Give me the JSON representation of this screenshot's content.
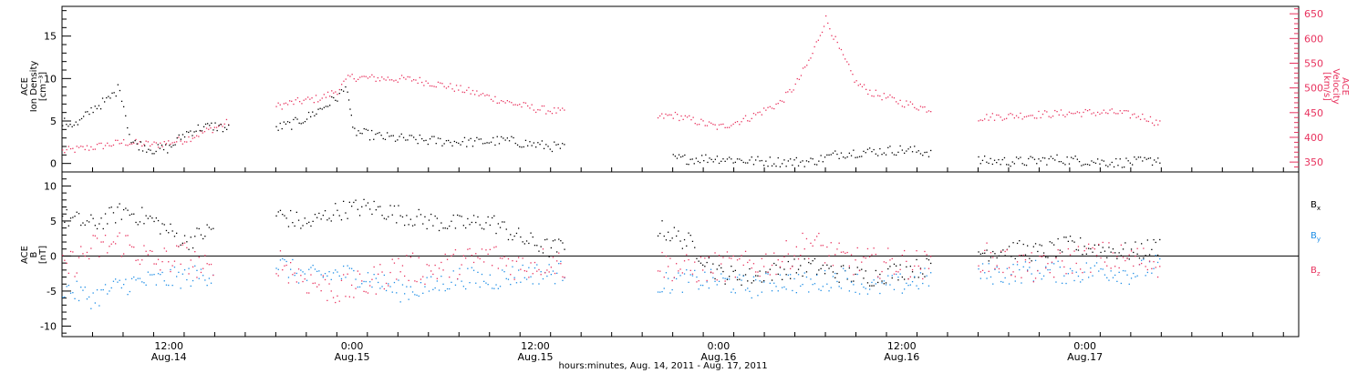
{
  "colors": {
    "black": "#000000",
    "pink": "#e8325e",
    "blue": "#1e8ee6"
  },
  "footer": {
    "xlabel": "hours:minutes, Aug. 14, 2011 - Aug. 17, 2011"
  },
  "chart_data": [
    {
      "type": "scatter",
      "panel": "top",
      "ylabel_left": [
        "ACE",
        "Ion Density",
        "[cm⁻³]"
      ],
      "ylabel_right": [
        "ACE",
        "Velocity",
        "[km/s]"
      ],
      "xlim": [
        "2011-08-14 05:00",
        "2011-08-17 14:00"
      ],
      "ylim_left": [
        -1,
        18.5
      ],
      "ylim_right": [
        330,
        665
      ],
      "yticks_left": [
        "0",
        "5",
        "10",
        "15"
      ],
      "yticks_right": [
        "350",
        "400",
        "450",
        "500",
        "550",
        "600",
        "650"
      ],
      "xticks": [
        {
          "t": "2011-08-14 12:00",
          "time": "12:00",
          "date": "Aug.14"
        },
        {
          "t": "2011-08-15 00:00",
          "time": "0:00",
          "date": "Aug.15"
        },
        {
          "t": "2011-08-15 12:00",
          "time": "12:00",
          "date": "Aug.15"
        },
        {
          "t": "2011-08-16 00:00",
          "time": "0:00",
          "date": "Aug.16"
        },
        {
          "t": "2011-08-16 12:00",
          "time": "12:00",
          "date": "Aug.16"
        },
        {
          "t": "2011-08-17 00:00",
          "time": "0:00",
          "date": "Aug.17"
        }
      ],
      "series": [
        {
          "axis": "left",
          "color": "black",
          "x": [
            "2011-08-14 05:00",
            "2011-08-14 06:00",
            "2011-08-14 07:00",
            "2011-08-14 08:00",
            "2011-08-14 08:45",
            "2011-08-14 09:30",
            "2011-08-14 10:00",
            "2011-08-14 11:00",
            "2011-08-14 12:00",
            "2011-08-14 13:00",
            "2011-08-14 14:00",
            "2011-08-14 15:00",
            "2011-08-14 16:00",
            "2011-08-14 19:00",
            "2011-08-14 20:00",
            "2011-08-14 21:00",
            "2011-08-14 22:00",
            "2011-08-14 23:00",
            "2011-08-14 23:40",
            "2011-08-15 00:00",
            "2011-08-15 01:00",
            "2011-08-15 02:00",
            "2011-08-15 04:00",
            "2011-08-15 06:00",
            "2011-08-15 08:00",
            "2011-08-15 10:00",
            "2011-08-15 12:00",
            "2011-08-15 14:00",
            "2011-08-15 16:00",
            "2011-08-15 21:00",
            "2011-08-15 22:00",
            "2011-08-15 23:00",
            "2011-08-16 00:00",
            "2011-08-16 02:00",
            "2011-08-16 04:00",
            "2011-08-16 06:00",
            "2011-08-16 08:00",
            "2011-08-16 10:00",
            "2011-08-16 12:00",
            "2011-08-16 14:00",
            "2011-08-16 17:00",
            "2011-08-16 20:00",
            "2011-08-16 22:00",
            "2011-08-17 00:00",
            "2011-08-17 02:00",
            "2011-08-17 04:00",
            "2011-08-17 05:00"
          ],
          "y": [
            4.8,
            4.6,
            6.5,
            7.5,
            9.0,
            2.5,
            2.2,
            1.6,
            1.8,
            3.5,
            4.2,
            4.4,
            4.0,
            4.2,
            4.6,
            5.4,
            6.5,
            7.8,
            9.0,
            3.8,
            3.4,
            3.1,
            2.8,
            2.6,
            2.5,
            2.7,
            2.2,
            1.8,
            1.9,
            0.6,
            0.5,
            0.6,
            0.6,
            0.3,
            0.2,
            0.2,
            1.2,
            1.4,
            1.6,
            1.3,
            0.3,
            0.2,
            0.5,
            0.3,
            0.1,
            0.2,
            0.6
          ]
        },
        {
          "axis": "right",
          "color": "pink",
          "x": [
            "2011-08-14 05:00",
            "2011-08-14 07:00",
            "2011-08-14 09:00",
            "2011-08-14 11:00",
            "2011-08-14 13:00",
            "2011-08-14 16:00",
            "2011-08-14 19:00",
            "2011-08-14 20:00",
            "2011-08-14 22:00",
            "2011-08-14 23:00",
            "2011-08-14 23:50",
            "2011-08-15 01:00",
            "2011-08-15 04:00",
            "2011-08-15 06:00",
            "2011-08-15 08:00",
            "2011-08-15 10:00",
            "2011-08-15 12:00",
            "2011-08-15 14:00",
            "2011-08-15 20:00",
            "2011-08-15 21:00",
            "2011-08-16 00:00",
            "2011-08-16 02:00",
            "2011-08-16 04:00",
            "2011-08-16 05:00",
            "2011-08-16 06:00",
            "2011-08-16 07:00",
            "2011-08-16 08:00",
            "2011-08-16 09:00",
            "2011-08-16 10:00",
            "2011-08-16 12:00",
            "2011-08-16 14:00",
            "2011-08-16 17:00",
            "2011-08-16 20:00",
            "2011-08-17 00:00",
            "2011-08-17 02:00",
            "2011-08-17 04:00",
            "2011-08-17 05:00"
          ],
          "y": [
            372,
            380,
            390,
            385,
            395,
            432,
            462,
            470,
            480,
            495,
            522,
            520,
            517,
            505,
            490,
            472,
            458,
            450,
            440,
            445,
            420,
            440,
            470,
            505,
            560,
            640,
            570,
            510,
            490,
            470,
            455,
            440,
            445,
            450,
            450,
            440,
            425
          ]
        }
      ],
      "data_gaps": [
        [
          "2011-08-14 16:00",
          "2011-08-14 19:00"
        ],
        [
          "2011-08-15 14:00",
          "2011-08-15 20:00"
        ],
        [
          "2011-08-16 14:00",
          "2011-08-16 16:30"
        ]
      ]
    },
    {
      "type": "scatter",
      "panel": "bottom",
      "ylabel_left": [
        "ACE",
        "B",
        "[nT]"
      ],
      "xlim": [
        "2011-08-14 05:00",
        "2011-08-17 14:00"
      ],
      "ylim": [
        -11.5,
        12
      ],
      "yticks": [
        "10",
        "5",
        "0",
        "-5",
        "-10"
      ],
      "zero_line": true,
      "xlabel": "hours:minutes, Aug. 14, 2011 - Aug. 17, 2011",
      "series": [
        {
          "name": "B",
          "sub": "x",
          "color": "black",
          "x": [
            "2011-08-14 05:00",
            "2011-08-14 07:00",
            "2011-08-14 09:00",
            "2011-08-14 11:00",
            "2011-08-14 13:00",
            "2011-08-14 15:00",
            "2011-08-14 19:00",
            "2011-08-14 21:00",
            "2011-08-14 23:00",
            "2011-08-15 01:00",
            "2011-08-15 03:00",
            "2011-08-15 05:00",
            "2011-08-15 07:00",
            "2011-08-15 09:00",
            "2011-08-15 11:00",
            "2011-08-15 13:00",
            "2011-08-15 14:00",
            "2011-08-15 20:00",
            "2011-08-15 22:00",
            "2011-08-16 00:00",
            "2011-08-16 02:00",
            "2011-08-16 04:00",
            "2011-08-16 06:00",
            "2011-08-16 08:00",
            "2011-08-16 10:00",
            "2011-08-16 12:00",
            "2011-08-16 14:00",
            "2011-08-16 17:00",
            "2011-08-16 19:00",
            "2011-08-16 21:00",
            "2011-08-16 23:00",
            "2011-08-17 01:00",
            "2011-08-17 03:00",
            "2011-08-17 05:00"
          ],
          "y": [
            5.5,
            4.5,
            6.5,
            5.0,
            2.0,
            4.0,
            6.0,
            4.5,
            6.5,
            7.0,
            6.0,
            5.0,
            4.5,
            5.0,
            2.5,
            1.0,
            1.5,
            4.0,
            2.0,
            -2.5,
            -3.0,
            -2.0,
            -1.5,
            -2.5,
            -3.0,
            -2.0,
            -1.5,
            0.5,
            1.0,
            0.5,
            1.5,
            1.0,
            0.5,
            1.5
          ]
        },
        {
          "name": "B",
          "sub": "y",
          "color": "blue",
          "x": [
            "2011-08-14 05:00",
            "2011-08-14 07:00",
            "2011-08-14 09:00",
            "2011-08-14 11:00",
            "2011-08-14 13:00",
            "2011-08-14 15:00",
            "2011-08-14 19:00",
            "2011-08-14 21:00",
            "2011-08-14 23:00",
            "2011-08-15 01:00",
            "2011-08-15 03:00",
            "2011-08-15 05:00",
            "2011-08-15 07:00",
            "2011-08-15 09:00",
            "2011-08-15 11:00",
            "2011-08-15 13:00",
            "2011-08-15 14:00",
            "2011-08-15 20:00",
            "2011-08-15 22:00",
            "2011-08-16 00:00",
            "2011-08-16 02:00",
            "2011-08-16 04:00",
            "2011-08-16 06:00",
            "2011-08-16 08:00",
            "2011-08-16 10:00",
            "2011-08-16 12:00",
            "2011-08-16 14:00",
            "2011-08-16 17:00",
            "2011-08-16 19:00",
            "2011-08-16 21:00",
            "2011-08-16 23:00",
            "2011-08-17 01:00",
            "2011-08-17 03:00",
            "2011-08-17 05:00"
          ],
          "y": [
            -4.5,
            -6.0,
            -4.0,
            -3.5,
            -3.0,
            -2.5,
            -1.0,
            -3.0,
            -2.5,
            -3.0,
            -5.0,
            -4.5,
            -3.0,
            -3.5,
            -2.5,
            -2.5,
            -2.0,
            -4.0,
            -3.5,
            -3.5,
            -4.5,
            -3.5,
            -4.0,
            -3.0,
            -4.5,
            -4.0,
            -3.0,
            -2.5,
            -2.5,
            -2.0,
            -2.5,
            -2.0,
            -2.5,
            -1.0
          ]
        },
        {
          "name": "B",
          "sub": "z",
          "color": "pink",
          "x": [
            "2011-08-14 05:00",
            "2011-08-14 07:00",
            "2011-08-14 09:00",
            "2011-08-14 11:00",
            "2011-08-14 13:00",
            "2011-08-14 15:00",
            "2011-08-14 19:00",
            "2011-08-14 21:00",
            "2011-08-14 23:00",
            "2011-08-15 01:00",
            "2011-08-15 03:00",
            "2011-08-15 05:00",
            "2011-08-15 07:00",
            "2011-08-15 09:00",
            "2011-08-15 11:00",
            "2011-08-15 13:00",
            "2011-08-15 14:00",
            "2011-08-15 20:00",
            "2011-08-15 22:00",
            "2011-08-16 00:00",
            "2011-08-16 02:00",
            "2011-08-16 04:00",
            "2011-08-16 06:00",
            "2011-08-16 08:00",
            "2011-08-16 10:00",
            "2011-08-16 12:00",
            "2011-08-16 14:00",
            "2011-08-16 17:00",
            "2011-08-16 19:00",
            "2011-08-16 21:00",
            "2011-08-16 23:00",
            "2011-08-17 01:00",
            "2011-08-17 03:00",
            "2011-08-17 05:00"
          ],
          "y": [
            -2.0,
            1.0,
            2.0,
            -1.0,
            0.0,
            -3.0,
            -0.5,
            -3.5,
            -5.0,
            -4.0,
            -1.5,
            -2.0,
            -1.0,
            0.0,
            -1.5,
            -0.5,
            -1.5,
            -1.0,
            -2.0,
            -1.5,
            -1.5,
            -0.5,
            2.0,
            -0.5,
            -1.0,
            -1.0,
            -1.5,
            0.0,
            -1.0,
            -2.0,
            -0.5,
            0.0,
            -0.5,
            -1.0
          ]
        }
      ],
      "data_gaps": [
        [
          "2011-08-14 16:00",
          "2011-08-14 19:00"
        ],
        [
          "2011-08-15 14:00",
          "2011-08-15 20:00"
        ],
        [
          "2011-08-16 14:00",
          "2011-08-16 16:30"
        ]
      ]
    }
  ]
}
